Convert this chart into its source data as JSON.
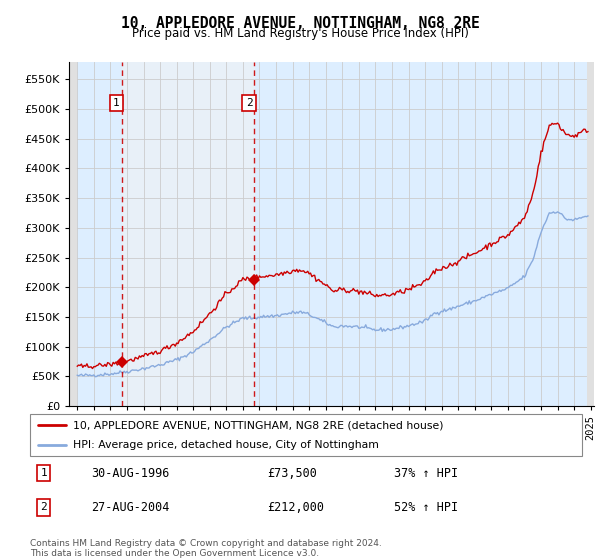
{
  "title": "10, APPLEDORE AVENUE, NOTTINGHAM, NG8 2RE",
  "subtitle": "Price paid vs. HM Land Registry's House Price Index (HPI)",
  "property_label": "10, APPLEDORE AVENUE, NOTTINGHAM, NG8 2RE (detached house)",
  "hpi_label": "HPI: Average price, detached house, City of Nottingham",
  "footnote": "Contains HM Land Registry data © Crown copyright and database right 2024.\nThis data is licensed under the Open Government Licence v3.0.",
  "sale1_date": "30-AUG-1996",
  "sale1_price": 73500,
  "sale1_hpi_text": "37% ↑ HPI",
  "sale2_date": "27-AUG-2004",
  "sale2_price": 212000,
  "sale2_hpi_text": "52% ↑ HPI",
  "ylim": [
    0,
    580000
  ],
  "yticks": [
    0,
    50000,
    100000,
    150000,
    200000,
    250000,
    300000,
    350000,
    400000,
    450000,
    500000,
    550000
  ],
  "property_color": "#cc0000",
  "hpi_color": "#88aadd",
  "grid_color": "#cccccc",
  "bg_color": "#ddeeff",
  "bg_color2": "#e8f0f8",
  "sale1_x": 1996.67,
  "sale1_y": 73500,
  "sale2_x": 2004.67,
  "sale2_y": 212000,
  "xmin": 1993.5,
  "xmax": 2025.2
}
